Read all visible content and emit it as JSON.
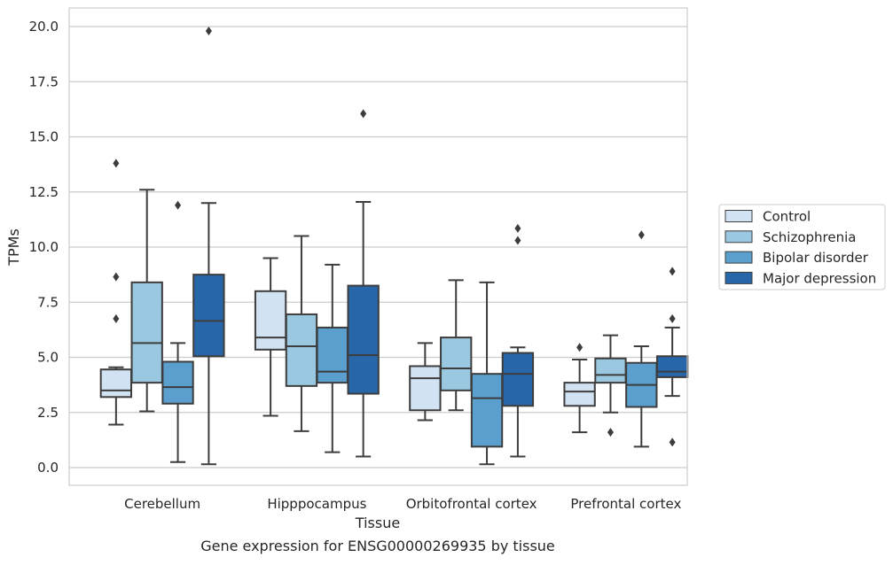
{
  "chart_data": {
    "type": "boxplot",
    "caption": "Gene expression for ENSG00000269935 by tissue",
    "xlabel": "Tissue",
    "ylabel": "TPMs",
    "ylim": [
      -0.8,
      20.8
    ],
    "yticks": [
      0.0,
      2.5,
      5.0,
      7.5,
      10.0,
      12.5,
      15.0,
      17.5,
      20.0
    ],
    "ytick_labels": [
      "0.0",
      "2.5",
      "5.0",
      "7.5",
      "10.0",
      "12.5",
      "15.0",
      "17.5",
      "20.0"
    ],
    "grid": "horizontal",
    "legend_position": "right",
    "categories": [
      "Cerebellum",
      "Hipppocampus",
      "Orbitofrontal cortex",
      "Prefrontal cortex"
    ],
    "series": [
      {
        "name": "Control",
        "color": "#d1e2f2",
        "boxes": [
          {
            "whisker_low": 1.95,
            "q1": 3.2,
            "median": 3.5,
            "q3": 4.45,
            "whisker_high": 4.55,
            "outliers": [
              6.75,
              8.65,
              13.8
            ]
          },
          {
            "whisker_low": 2.35,
            "q1": 5.35,
            "median": 5.9,
            "q3": 8.0,
            "whisker_high": 9.5,
            "outliers": []
          },
          {
            "whisker_low": 2.15,
            "q1": 2.6,
            "median": 4.05,
            "q3": 4.6,
            "whisker_high": 5.65,
            "outliers": []
          },
          {
            "whisker_low": 1.6,
            "q1": 2.8,
            "median": 3.45,
            "q3": 3.85,
            "whisker_high": 4.9,
            "outliers": [
              5.45
            ]
          }
        ]
      },
      {
        "name": "Schizophrenia",
        "color": "#9ac8e0",
        "boxes": [
          {
            "whisker_low": 2.55,
            "q1": 3.85,
            "median": 5.65,
            "q3": 8.4,
            "whisker_high": 12.6,
            "outliers": []
          },
          {
            "whisker_low": 1.65,
            "q1": 3.7,
            "median": 5.5,
            "q3": 6.95,
            "whisker_high": 10.5,
            "outliers": []
          },
          {
            "whisker_low": 2.6,
            "q1": 3.5,
            "median": 4.5,
            "q3": 5.9,
            "whisker_high": 8.5,
            "outliers": []
          },
          {
            "whisker_low": 2.5,
            "q1": 3.85,
            "median": 4.2,
            "q3": 4.95,
            "whisker_high": 6.0,
            "outliers": [
              1.6
            ]
          }
        ]
      },
      {
        "name": "Bipolar disorder",
        "color": "#5a9fcd",
        "boxes": [
          {
            "whisker_low": 0.25,
            "q1": 2.9,
            "median": 3.65,
            "q3": 4.8,
            "whisker_high": 5.65,
            "outliers": [
              11.9
            ]
          },
          {
            "whisker_low": 0.7,
            "q1": 3.85,
            "median": 4.35,
            "q3": 6.35,
            "whisker_high": 9.2,
            "outliers": []
          },
          {
            "whisker_low": 0.15,
            "q1": 0.95,
            "median": 3.15,
            "q3": 4.25,
            "whisker_high": 8.4,
            "outliers": []
          },
          {
            "whisker_low": 0.95,
            "q1": 2.75,
            "median": 3.75,
            "q3": 4.75,
            "whisker_high": 5.5,
            "outliers": [
              10.55
            ]
          }
        ]
      },
      {
        "name": "Major depression",
        "color": "#2766a9",
        "boxes": [
          {
            "whisker_low": 0.15,
            "q1": 5.05,
            "median": 6.65,
            "q3": 8.75,
            "whisker_high": 12.0,
            "outliers": [
              19.8
            ]
          },
          {
            "whisker_low": 0.5,
            "q1": 3.35,
            "median": 5.1,
            "q3": 8.25,
            "whisker_high": 12.05,
            "outliers": [
              16.05
            ]
          },
          {
            "whisker_low": 0.5,
            "q1": 2.8,
            "median": 4.25,
            "q3": 5.2,
            "whisker_high": 5.45,
            "outliers": [
              10.3,
              10.85
            ]
          },
          {
            "whisker_low": 3.25,
            "q1": 4.1,
            "median": 4.35,
            "q3": 5.05,
            "whisker_high": 6.35,
            "outliers": [
              1.15,
              6.75,
              8.9
            ]
          }
        ]
      }
    ]
  }
}
